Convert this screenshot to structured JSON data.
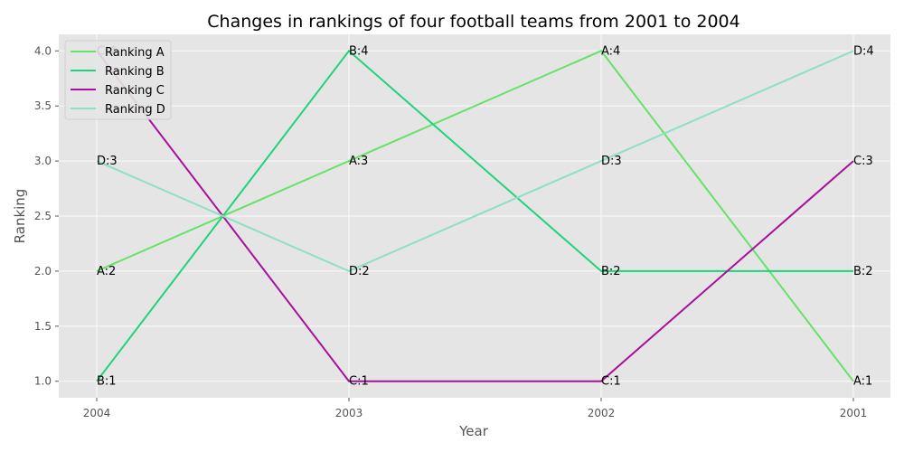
{
  "chart_data": {
    "type": "line",
    "title": "Changes in rankings of four football teams from 2001 to 2004",
    "xlabel": "Year",
    "ylabel": "Ranking",
    "categories": [
      "2004",
      "2003",
      "2002",
      "2001"
    ],
    "ylim": [
      0.85,
      4.15
    ],
    "yticks": [
      "1.0",
      "1.5",
      "2.0",
      "2.5",
      "3.0",
      "3.5",
      "4.0"
    ],
    "grid": true,
    "legend_position": "top-left",
    "series": [
      {
        "name": "Ranking A",
        "label_prefix": "A",
        "values": [
          2,
          3,
          4,
          1
        ],
        "color": "#66e266"
      },
      {
        "name": "Ranking B",
        "label_prefix": "B",
        "values": [
          1,
          4,
          2,
          2
        ],
        "color": "#1ed47a"
      },
      {
        "name": "Ranking C",
        "label_prefix": "C",
        "values": [
          4,
          1,
          1,
          3
        ],
        "color": "#a80f9c"
      },
      {
        "name": "Ranking D",
        "label_prefix": "D",
        "values": [
          3,
          2,
          3,
          4
        ],
        "color": "#8de0c4"
      }
    ],
    "point_labels": [
      [
        "A:2",
        "A:3",
        "A:4",
        "A:1"
      ],
      [
        "B:1",
        "B:4",
        "B:2",
        "B:2"
      ],
      [
        "C:4",
        "C:1",
        "C:1",
        "C:3"
      ],
      [
        "D:3",
        "D:2",
        "D:3",
        "D:4"
      ]
    ]
  }
}
